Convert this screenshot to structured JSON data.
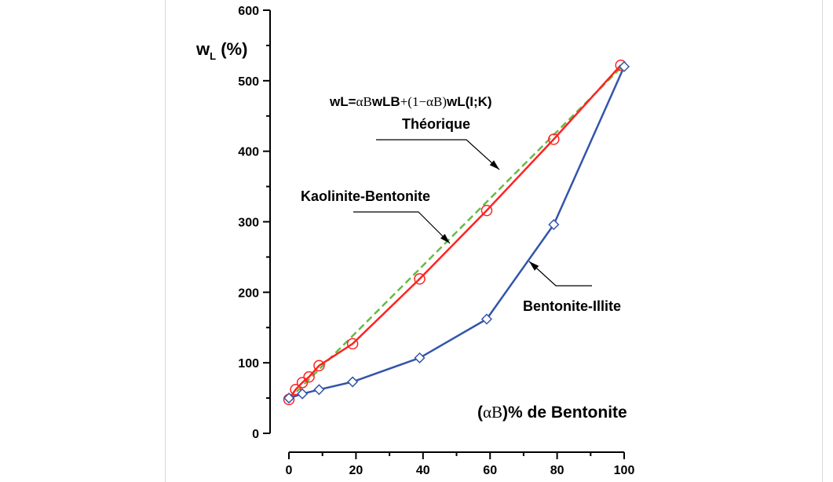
{
  "chart_data": {
    "type": "line",
    "ylabel": "w",
    "ylabel_sub": "L",
    "ylabel_unit": " (%)",
    "xlabel_open": "(",
    "xlabel_alpha": "α",
    "xlabel_B": "B",
    "xlabel_rest": ")% de Bentonite",
    "xlim": [
      0,
      100
    ],
    "ylim": [
      0,
      600
    ],
    "xticks": [
      0,
      20,
      40,
      60,
      80,
      100
    ],
    "xtick_labels": [
      "0",
      "20",
      "40",
      "60",
      "80",
      "100"
    ],
    "yticks": [
      0,
      100,
      200,
      300,
      400,
      500,
      600
    ],
    "ytick_labels": [
      "0",
      "100",
      "200",
      "300",
      "400",
      "500",
      "600"
    ],
    "grid": false,
    "series": [
      {
        "name": "Théorique",
        "color": "#66bb44",
        "style": "dashed",
        "marker": "none",
        "x": [
          0,
          100
        ],
        "y": [
          48,
          523
        ]
      },
      {
        "name": "Kaolinite-Bentonite",
        "color": "#ff2222",
        "style": "solid",
        "marker": "circle",
        "x": [
          0,
          2,
          4,
          6,
          9,
          19,
          39,
          59,
          79,
          99
        ],
        "y": [
          48,
          62,
          72,
          80,
          96,
          127,
          219,
          316,
          417,
          522
        ]
      },
      {
        "name": "Bentonite-Illite",
        "color": "#3355aa",
        "style": "solid",
        "marker": "diamond",
        "x": [
          0,
          4,
          9,
          19,
          39,
          59,
          79,
          100
        ],
        "y": [
          50,
          56,
          62,
          73,
          107,
          162,
          296,
          520
        ]
      }
    ],
    "formula": {
      "w1": "wL",
      "eq": "=",
      "alpha1": "α",
      "B1": "B",
      "w2": "wLB",
      "plus": "+(1−",
      "alpha2": "α",
      "B2": "B",
      "close": ")",
      "w3": "wL(I;K)"
    },
    "annotations": {
      "theorique": "Théorique",
      "kaolinite": "Kaolinite-Bentonite",
      "illite": "Bentonite-Illite"
    }
  }
}
